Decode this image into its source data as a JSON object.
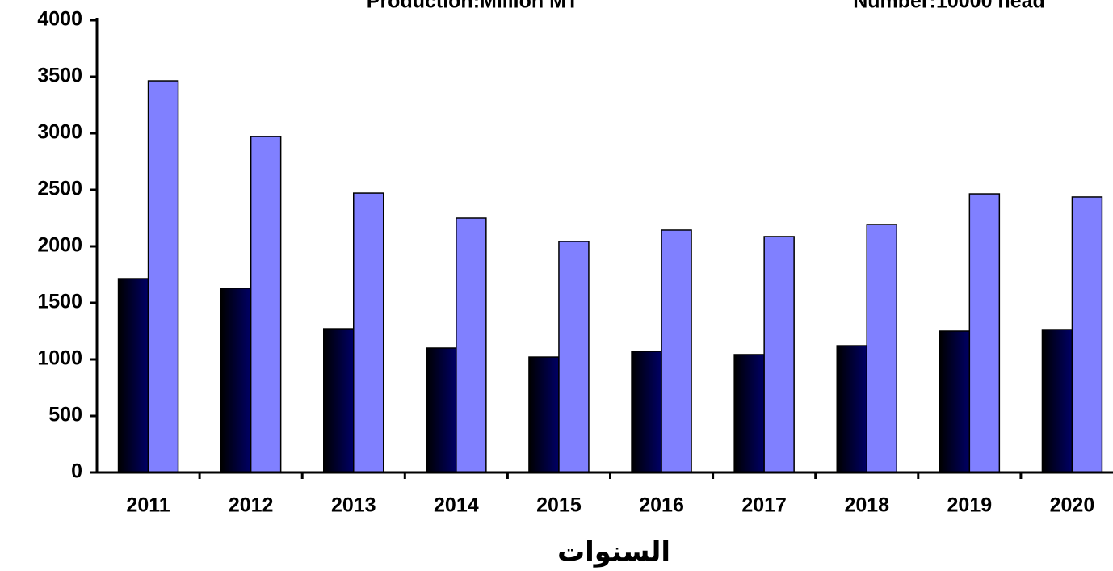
{
  "chart_data": {
    "type": "bar",
    "categories": [
      "2011",
      "2012",
      "2013",
      "2014",
      "2015",
      "2016",
      "2017",
      "2018",
      "2019",
      "2020"
    ],
    "series": [
      {
        "name": "Production:Million MT",
        "color": "#000066",
        "values": [
          1714,
          1629,
          1271,
          1100,
          1021,
          1071,
          1043,
          1121,
          1250,
          1264
        ]
      },
      {
        "name": "Number:10000 head",
        "color": "#8080ff",
        "values": [
          3464,
          2971,
          2471,
          2250,
          2043,
          2143,
          2086,
          2193,
          2464,
          2436
        ]
      }
    ],
    "x_label": "السنوات",
    "ylim": [
      0,
      4000
    ],
    "yticks": [
      0,
      500,
      1000,
      1500,
      2000,
      2500,
      3000,
      3500,
      4000
    ],
    "grid": false
  }
}
